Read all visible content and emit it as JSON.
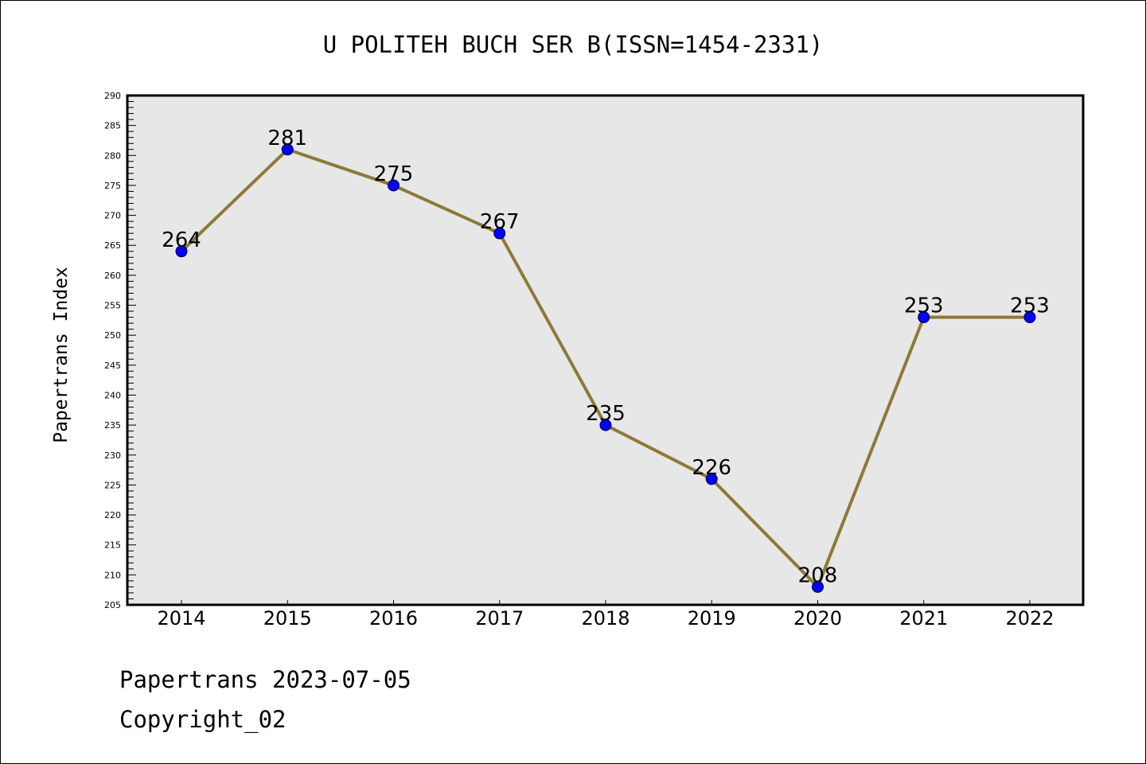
{
  "chart_data": {
    "type": "line",
    "title": "U POLITEH BUCH SER B(ISSN=1454-2331)",
    "xlabel": "",
    "ylabel": "Papertrans Index",
    "categories": [
      "2014",
      "2015",
      "2016",
      "2017",
      "2018",
      "2019",
      "2020",
      "2021",
      "2022"
    ],
    "series": [
      {
        "name": "Papertrans Index",
        "values": [
          264,
          281,
          275,
          267,
          235,
          226,
          208,
          253,
          253
        ]
      }
    ],
    "ylim": [
      205,
      290
    ],
    "yticks": [
      205,
      210,
      215,
      220,
      225,
      230,
      235,
      240,
      245,
      250,
      255,
      260,
      265,
      270,
      275,
      280,
      285,
      290
    ],
    "grid": false,
    "legend": "none",
    "colors": {
      "line": "#8c7a36",
      "marker": "#0000ff",
      "plot_bg": "#e7e7e7"
    }
  },
  "footer": {
    "line1": "Papertrans 2023-07-05",
    "line2": "Copyright_02"
  }
}
